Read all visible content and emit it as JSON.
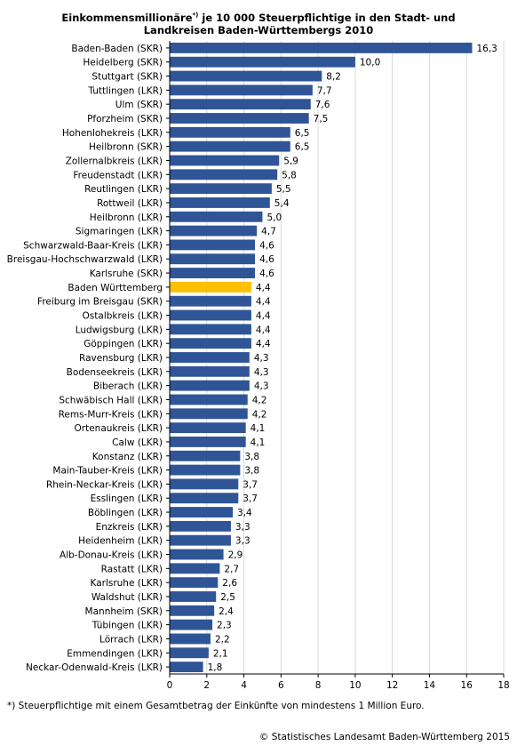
{
  "title_part1": "Einkommensmillionäre",
  "title_mark": "*)",
  "title_part2": " je 10 000 Steuerpflichtige in den Stadt- und",
  "title_line2": "Landkreisen Baden-Württembergs 2010",
  "footnote": "*) Steuerpflichtige mit einem Gesamtbetrag der Einkünfte von mindestens 1 Million Euro.",
  "source": "© Statistisches Landesamt Baden-Württemberg 2015",
  "colors": {
    "bar": "#2f5597",
    "highlight": "#ffc000",
    "grid": "#d9d9d9"
  },
  "chart_data": {
    "type": "bar",
    "orientation": "horizontal",
    "title": "Einkommensmillionäre*) je 10 000 Steuerpflichtige in den Stadt- und Landkreisen Baden-Württembergs 2010",
    "xlim": [
      0,
      18
    ],
    "xticks": [
      0,
      2,
      4,
      6,
      8,
      10,
      12,
      14,
      16,
      18
    ],
    "grid": "vertical",
    "highlight_category": "Baden Württemberg",
    "categories": [
      "Baden-Baden (SKR)",
      "Heidelberg (SKR)",
      "Stuttgart (SKR)",
      "Tuttlingen (LKR)",
      "Ulm (SKR)",
      "Pforzheim (SKR)",
      "Hohenlohekreis (LKR)",
      "Heilbronn (SKR)",
      "Zollernalbkreis (LKR)",
      "Freudenstadt (LKR)",
      "Reutlingen (LKR)",
      "Rottweil (LKR)",
      "Heilbronn (LKR)",
      "Sigmaringen (LKR)",
      "Schwarzwald-Baar-Kreis (LKR)",
      "Breisgau-Hochschwarzwald (LKR)",
      "Karlsruhe (SKR)",
      "Baden Württemberg",
      "Freiburg im Breisgau (SKR)",
      "Ostalbkreis (LKR)",
      "Ludwigsburg (LKR)",
      "Göppingen (LKR)",
      "Ravensburg (LKR)",
      "Bodenseekreis (LKR)",
      "Biberach (LKR)",
      "Schwäbisch Hall (LKR)",
      "Rems-Murr-Kreis (LKR)",
      "Ortenaukreis (LKR)",
      "Calw (LKR)",
      "Konstanz (LKR)",
      "Main-Tauber-Kreis (LKR)",
      "Rhein-Neckar-Kreis (LKR)",
      "Esslingen (LKR)",
      "Böblingen (LKR)",
      "Enzkreis (LKR)",
      "Heidenheim (LKR)",
      "Alb-Donau-Kreis (LKR)",
      "Rastatt (LKR)",
      "Karlsruhe (LKR)",
      "Waldshut (LKR)",
      "Mannheim (SKR)",
      "Tübingen (LKR)",
      "Lörrach (LKR)",
      "Emmendingen (LKR)",
      "Neckar-Odenwald-Kreis (LKR)"
    ],
    "values": [
      16.3,
      10.0,
      8.2,
      7.7,
      7.6,
      7.5,
      6.5,
      6.5,
      5.9,
      5.8,
      5.5,
      5.4,
      5.0,
      4.7,
      4.6,
      4.6,
      4.6,
      4.4,
      4.4,
      4.4,
      4.4,
      4.4,
      4.3,
      4.3,
      4.3,
      4.2,
      4.2,
      4.1,
      4.1,
      3.8,
      3.8,
      3.7,
      3.7,
      3.4,
      3.3,
      3.3,
      2.9,
      2.7,
      2.6,
      2.5,
      2.4,
      2.3,
      2.2,
      2.1,
      1.8
    ],
    "value_labels": [
      "16,3",
      "10,0",
      "8,2",
      "7,7",
      "7,6",
      "7,5",
      "6,5",
      "6,5",
      "5,9",
      "5,8",
      "5,5",
      "5,4",
      "5,0",
      "4,7",
      "4,6",
      "4,6",
      "4,6",
      "4,4",
      "4,4",
      "4,4",
      "4,4",
      "4,4",
      "4,3",
      "4,3",
      "4,3",
      "4,2",
      "4,2",
      "4,1",
      "4,1",
      "3,8",
      "3,8",
      "3,7",
      "3,7",
      "3,4",
      "3,3",
      "3,3",
      "2,9",
      "2,7",
      "2,6",
      "2,5",
      "2,4",
      "2,3",
      "2,2",
      "2,1",
      "1,8"
    ]
  }
}
